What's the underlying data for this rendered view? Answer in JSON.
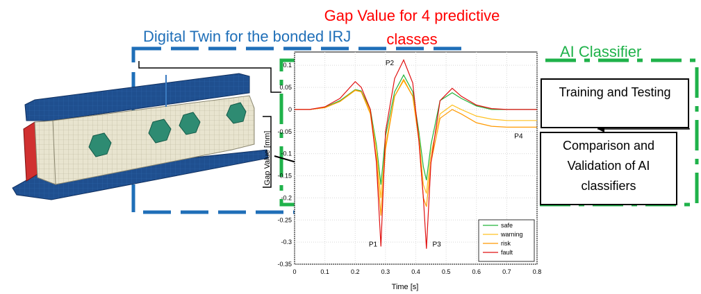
{
  "titles": {
    "digital_twin": "Digital Twin for the bonded IRJ",
    "gap_value": "Gap Value for 4 predictive classes",
    "ai_classifier": "AI Classifier"
  },
  "boxes": {
    "training": "Training and Testing",
    "comparison": "Comparison and Validation of AI classifiers"
  },
  "colors": {
    "digital_twin_frame": "#1f6fb8",
    "ai_frame": "#1fb24a",
    "gap_title": "#ff0000",
    "rail_steel": "#1f4f8f",
    "insulation": "#e8e4cf",
    "bolts": "#2e8b72",
    "end_post": "#d03030"
  },
  "chart_data": {
    "type": "line",
    "title": "",
    "xlabel": "Time [s]",
    "ylabel": "Gap Value [mm]",
    "xlim": [
      0,
      0.8
    ],
    "ylim": [
      -0.35,
      0.13
    ],
    "xticks": [
      0,
      0.1,
      0.2,
      0.3,
      0.4,
      0.5,
      0.6,
      0.7,
      0.8
    ],
    "xtick_labels": [
      "0",
      "0.1",
      "0.2",
      "0.3",
      "0.4",
      "0.5",
      "0.6",
      "0.7",
      "0.8"
    ],
    "yticks": [
      0.1,
      0.05,
      0,
      -0.05,
      -0.1,
      -0.15,
      -0.2,
      -0.25,
      -0.3,
      -0.35
    ],
    "ytick_labels": [
      "0.1",
      "0.05",
      "0",
      "-0.05",
      "-0.1",
      "-0.15",
      "-0.2",
      "-0.25",
      "-0.3",
      "-0.35"
    ],
    "grid": true,
    "legend_position": "bottom-right",
    "annotations": [
      {
        "text": "P1",
        "x": 0.245,
        "y": -0.31
      },
      {
        "text": "P2",
        "x": 0.3,
        "y": 0.1
      },
      {
        "text": "P3",
        "x": 0.455,
        "y": -0.31
      },
      {
        "text": "P4",
        "x": 0.725,
        "y": -0.065
      }
    ],
    "series": [
      {
        "name": "safe",
        "color": "#22b33a",
        "x": [
          0,
          0.05,
          0.1,
          0.15,
          0.2,
          0.22,
          0.25,
          0.27,
          0.285,
          0.3,
          0.33,
          0.36,
          0.39,
          0.41,
          0.425,
          0.435,
          0.45,
          0.48,
          0.52,
          0.55,
          0.6,
          0.65,
          0.7,
          0.8
        ],
        "y": [
          0.0,
          0.0,
          0.005,
          0.02,
          0.045,
          0.042,
          0.0,
          -0.08,
          -0.17,
          -0.06,
          0.04,
          0.078,
          0.04,
          -0.05,
          -0.13,
          -0.16,
          -0.08,
          0.02,
          0.038,
          0.025,
          0.008,
          0.0,
          0.0,
          0.0
        ]
      },
      {
        "name": "warning",
        "color": "#ffc020",
        "x": [
          0,
          0.05,
          0.1,
          0.15,
          0.2,
          0.22,
          0.25,
          0.27,
          0.285,
          0.3,
          0.33,
          0.36,
          0.39,
          0.41,
          0.425,
          0.435,
          0.45,
          0.48,
          0.52,
          0.55,
          0.6,
          0.65,
          0.7,
          0.8
        ],
        "y": [
          0.0,
          0.0,
          0.004,
          0.018,
          0.043,
          0.04,
          -0.005,
          -0.09,
          -0.2,
          -0.08,
          0.03,
          0.065,
          0.03,
          -0.06,
          -0.17,
          -0.19,
          -0.1,
          -0.01,
          0.01,
          0.0,
          -0.015,
          -0.022,
          -0.025,
          -0.025
        ]
      },
      {
        "name": "risk",
        "color": "#ff9900",
        "x": [
          0,
          0.05,
          0.1,
          0.15,
          0.2,
          0.22,
          0.25,
          0.27,
          0.285,
          0.3,
          0.33,
          0.36,
          0.39,
          0.41,
          0.425,
          0.435,
          0.45,
          0.48,
          0.52,
          0.55,
          0.6,
          0.65,
          0.7,
          0.8
        ],
        "y": [
          0.0,
          0.0,
          0.004,
          0.018,
          0.044,
          0.04,
          -0.01,
          -0.11,
          -0.24,
          -0.09,
          0.03,
          0.068,
          0.03,
          -0.07,
          -0.2,
          -0.22,
          -0.12,
          -0.02,
          0.0,
          -0.01,
          -0.03,
          -0.038,
          -0.04,
          -0.04
        ]
      },
      {
        "name": "fault",
        "color": "#e01010",
        "x": [
          0,
          0.05,
          0.1,
          0.15,
          0.2,
          0.22,
          0.25,
          0.27,
          0.285,
          0.3,
          0.33,
          0.36,
          0.39,
          0.41,
          0.425,
          0.435,
          0.45,
          0.48,
          0.52,
          0.55,
          0.6,
          0.65,
          0.7,
          0.8
        ],
        "y": [
          0.0,
          0.0,
          0.006,
          0.025,
          0.063,
          0.05,
          0.0,
          -0.12,
          -0.31,
          -0.05,
          0.07,
          0.112,
          0.06,
          -0.07,
          -0.2,
          -0.315,
          -0.12,
          0.02,
          0.048,
          0.03,
          0.01,
          0.002,
          0.0,
          0.0
        ]
      }
    ]
  }
}
